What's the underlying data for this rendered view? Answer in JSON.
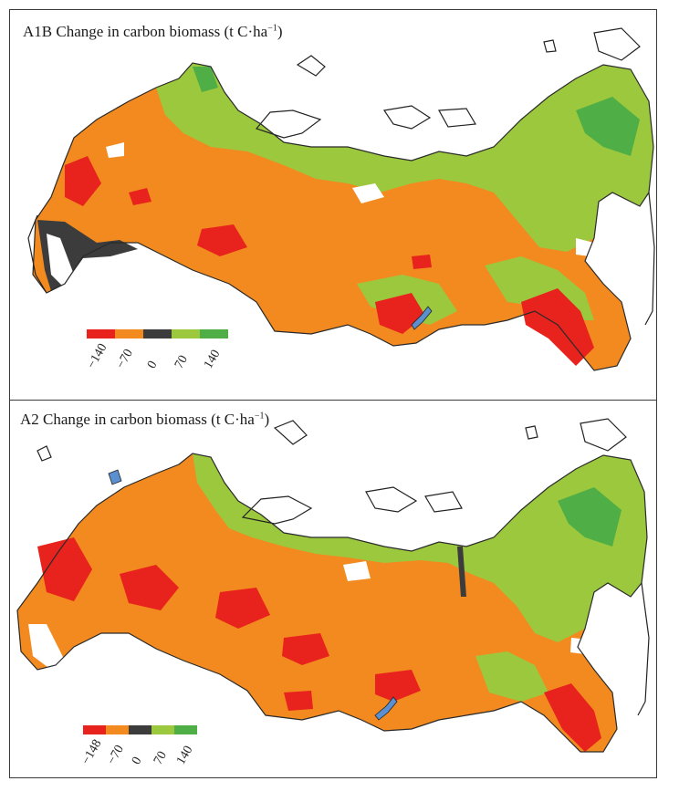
{
  "panels": [
    {
      "title_main": "A1B Change in carbon biomass (t C·ha",
      "title_sup": "−1",
      "title_end": ")",
      "legend": {
        "colors": [
          "#e8221c",
          "#f28a1f",
          "#3c3c3c",
          "#9cc83e",
          "#4fae45"
        ],
        "ticks": [
          "−140",
          "−70",
          "0",
          "70",
          "140"
        ]
      }
    },
    {
      "title_main": "A2 Change in carbon biomass (t C·ha",
      "title_sup": "−1",
      "title_end": ")",
      "legend": {
        "colors": [
          "#e8221c",
          "#f28a1f",
          "#3c3c3c",
          "#9cc83e",
          "#4fae45"
        ],
        "ticks": [
          "−148",
          "−70",
          "0",
          "70",
          "140"
        ]
      }
    }
  ]
}
